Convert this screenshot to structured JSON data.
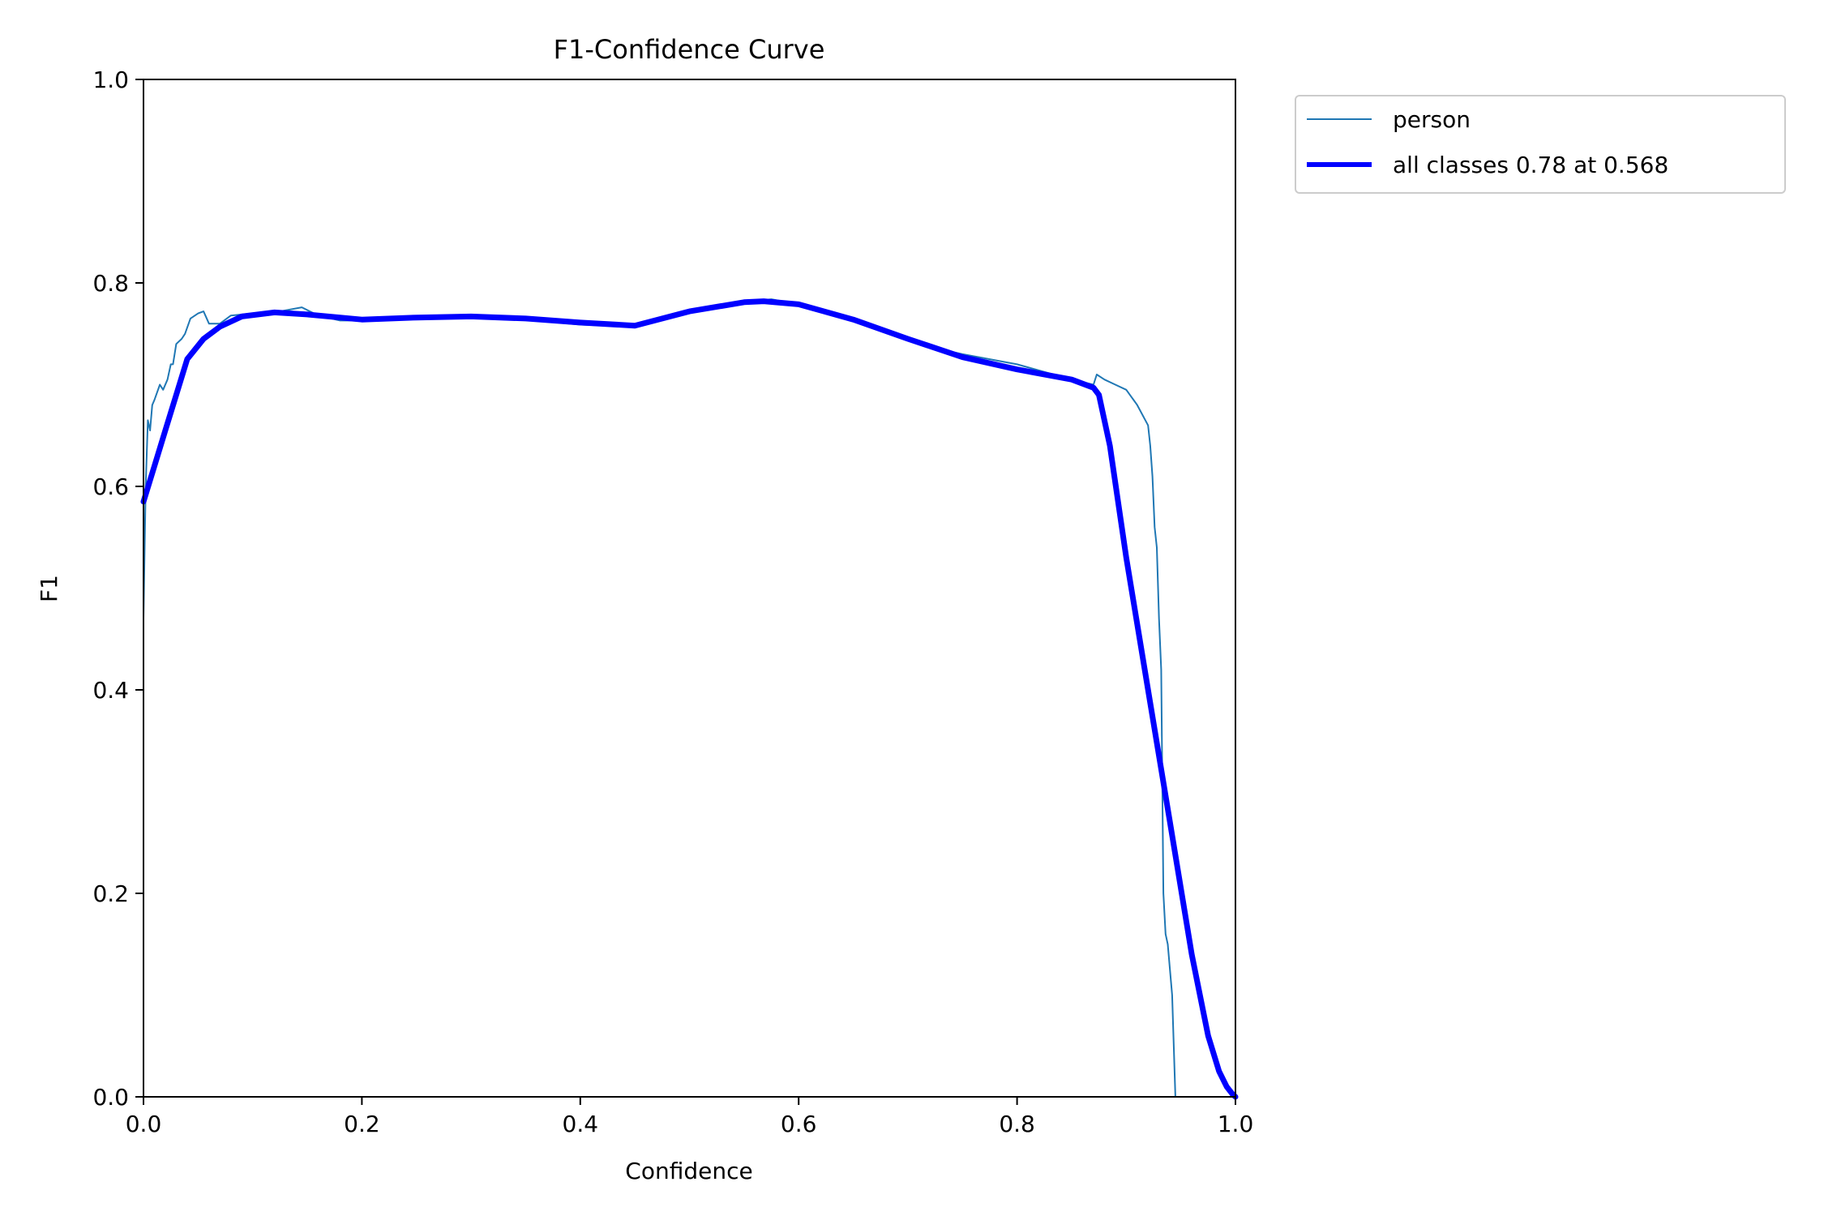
{
  "chart_data": {
    "type": "line",
    "title": "F1-Confidence Curve",
    "xlabel": "Confidence",
    "ylabel": "F1",
    "xlim": [
      0.0,
      1.0
    ],
    "ylim": [
      0.0,
      1.0
    ],
    "grid": false,
    "legend_placement": "outside-top-right",
    "xticks": [
      0.0,
      0.2,
      0.4,
      0.6,
      0.8,
      1.0
    ],
    "yticks": [
      0.0,
      0.2,
      0.4,
      0.6,
      0.8,
      1.0
    ],
    "xtick_labels": [
      "0.0",
      "0.2",
      "0.4",
      "0.6",
      "0.8",
      "1.0"
    ],
    "ytick_labels": [
      "0.0",
      "0.2",
      "0.4",
      "0.6",
      "0.8",
      "1.0"
    ],
    "series": [
      {
        "name": "person",
        "color": "#1f77b4",
        "x": [
          0.0,
          0.002,
          0.004,
          0.006,
          0.008,
          0.01,
          0.015,
          0.018,
          0.022,
          0.025,
          0.027,
          0.03,
          0.035,
          0.038,
          0.043,
          0.05,
          0.055,
          0.06,
          0.07,
          0.08,
          0.1,
          0.12,
          0.145,
          0.16,
          0.18,
          0.2,
          0.25,
          0.3,
          0.35,
          0.4,
          0.45,
          0.5,
          0.55,
          0.575,
          0.6,
          0.65,
          0.72,
          0.75,
          0.8,
          0.85,
          0.87,
          0.873,
          0.88,
          0.89,
          0.9,
          0.91,
          0.92,
          0.922,
          0.924,
          0.926,
          0.928,
          0.93,
          0.932,
          0.934,
          0.936,
          0.938,
          0.942,
          0.945,
          1.0
        ],
        "y": [
          0.47,
          0.6,
          0.665,
          0.655,
          0.68,
          0.685,
          0.7,
          0.695,
          0.705,
          0.72,
          0.72,
          0.74,
          0.745,
          0.75,
          0.765,
          0.77,
          0.772,
          0.76,
          0.76,
          0.768,
          0.77,
          0.771,
          0.776,
          0.768,
          0.763,
          0.763,
          0.767,
          0.768,
          0.764,
          0.759,
          0.757,
          0.773,
          0.781,
          0.784,
          0.779,
          0.764,
          0.737,
          0.73,
          0.72,
          0.705,
          0.7,
          0.71,
          0.705,
          0.7,
          0.695,
          0.68,
          0.66,
          0.64,
          0.61,
          0.56,
          0.54,
          0.47,
          0.42,
          0.2,
          0.16,
          0.15,
          0.1,
          0.0,
          0.0
        ]
      },
      {
        "name": "all classes 0.78 at 0.568",
        "color": "#0000ff",
        "x": [
          0.0,
          0.01,
          0.02,
          0.03,
          0.04,
          0.055,
          0.07,
          0.09,
          0.12,
          0.15,
          0.2,
          0.25,
          0.3,
          0.35,
          0.4,
          0.45,
          0.5,
          0.55,
          0.568,
          0.6,
          0.65,
          0.7,
          0.75,
          0.8,
          0.85,
          0.87,
          0.875,
          0.885,
          0.9,
          0.92,
          0.94,
          0.96,
          0.975,
          0.985,
          0.992,
          0.997,
          1.0
        ],
        "y": [
          0.585,
          0.62,
          0.655,
          0.69,
          0.725,
          0.745,
          0.757,
          0.767,
          0.771,
          0.769,
          0.764,
          0.766,
          0.767,
          0.765,
          0.761,
          0.758,
          0.772,
          0.781,
          0.782,
          0.779,
          0.764,
          0.745,
          0.727,
          0.715,
          0.705,
          0.697,
          0.69,
          0.64,
          0.53,
          0.4,
          0.27,
          0.14,
          0.06,
          0.025,
          0.01,
          0.003,
          0.0
        ]
      }
    ]
  }
}
